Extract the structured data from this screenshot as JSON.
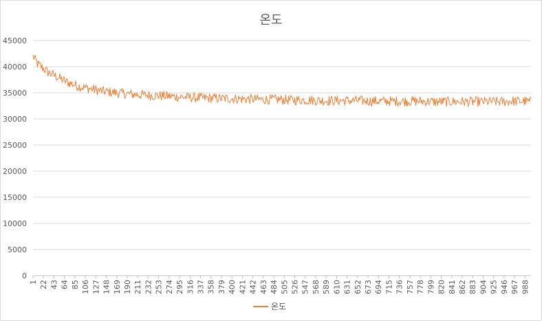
{
  "chart_data": {
    "type": "line",
    "title": "온도",
    "xlabel": "",
    "ylabel": "",
    "ylim": [
      0,
      45000
    ],
    "y_ticks": [
      0,
      5000,
      10000,
      15000,
      20000,
      25000,
      30000,
      35000,
      40000,
      45000
    ],
    "y_tick_labels": [
      "0",
      "5000",
      "10000",
      "15000",
      "20000",
      "25000",
      "30000",
      "35000",
      "40000",
      "45000"
    ],
    "x_range": [
      1,
      1000
    ],
    "x_tick_labels": [
      "1",
      "22",
      "43",
      "64",
      "85",
      "106",
      "127",
      "148",
      "169",
      "190",
      "211",
      "232",
      "253",
      "274",
      "295",
      "316",
      "337",
      "358",
      "379",
      "400",
      "421",
      "442",
      "463",
      "484",
      "505",
      "526",
      "547",
      "568",
      "589",
      "610",
      "631",
      "652",
      "673",
      "694",
      "715",
      "736",
      "757",
      "778",
      "799",
      "820",
      "841",
      "862",
      "883",
      "904",
      "925",
      "946",
      "967",
      "988"
    ],
    "grid": "horizontal",
    "legend_position": "bottom",
    "series": [
      {
        "name": "온도",
        "color": "#ED7D31",
        "x": [
          1,
          10,
          20,
          30,
          40,
          50,
          60,
          70,
          80,
          90,
          100,
          110,
          120,
          130,
          140,
          150,
          160,
          170,
          180,
          190,
          200,
          220,
          240,
          260,
          280,
          300,
          320,
          340,
          360,
          380,
          400,
          420,
          440,
          460,
          480,
          500,
          520,
          540,
          560,
          580,
          600,
          620,
          640,
          660,
          680,
          700,
          720,
          740,
          760,
          780,
          800,
          820,
          840,
          860,
          880,
          900,
          920,
          940,
          960,
          980,
          1000
        ],
        "values": [
          42000,
          40500,
          39800,
          39000,
          38500,
          38000,
          37500,
          37000,
          36700,
          36300,
          36100,
          35900,
          35700,
          35500,
          35300,
          35200,
          35100,
          35000,
          34900,
          34800,
          34700,
          34600,
          34500,
          34400,
          34300,
          34200,
          34100,
          34000,
          34000,
          33900,
          33900,
          33800,
          33800,
          33700,
          33700,
          33700,
          33600,
          33600,
          33600,
          33500,
          33500,
          33500,
          33500,
          33500,
          33400,
          33400,
          33400,
          33400,
          33400,
          33400,
          33300,
          33300,
          33300,
          33300,
          33300,
          33300,
          33300,
          33300,
          33400,
          33400,
          33300
        ]
      }
    ]
  }
}
